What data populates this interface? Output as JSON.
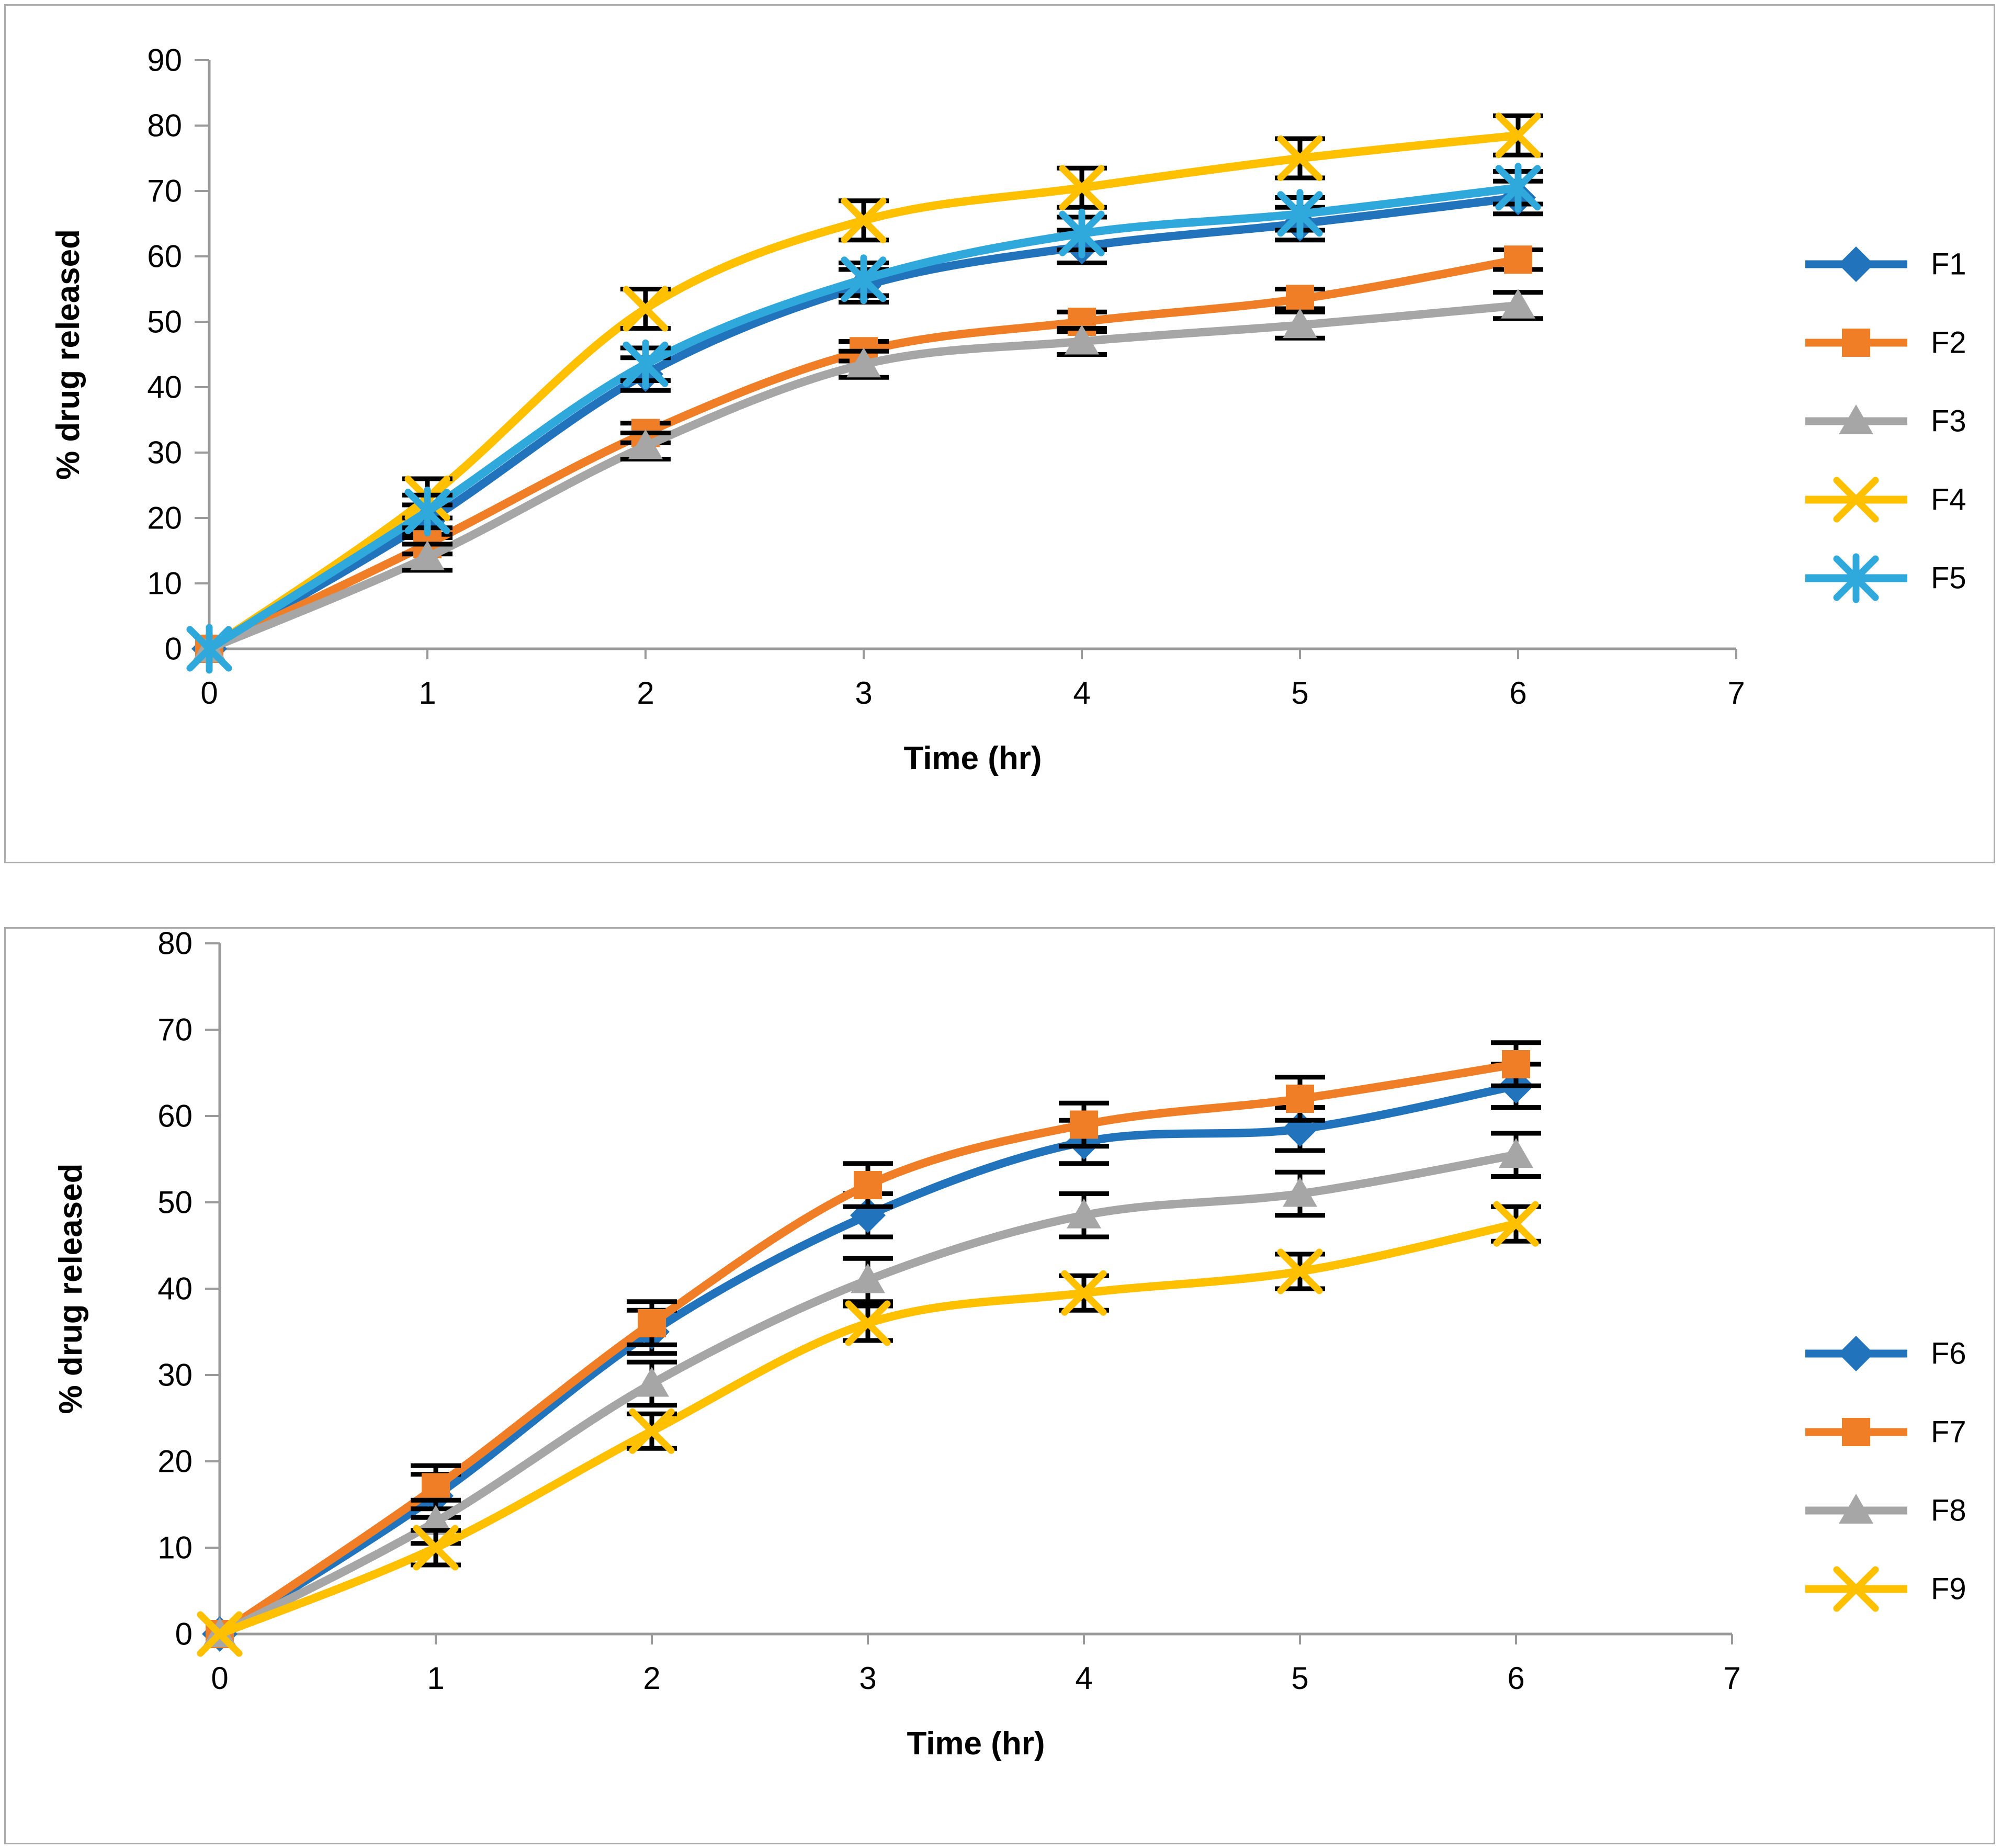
{
  "chart_data": [
    {
      "type": "line",
      "panel": "top",
      "title": "",
      "xlabel": "Time (hr)",
      "ylabel": "% drug released",
      "xlim": [
        0,
        7
      ],
      "ylim": [
        0,
        90
      ],
      "xticks": [
        0,
        1,
        2,
        3,
        4,
        5,
        6,
        7
      ],
      "yticks": [
        0,
        10,
        20,
        30,
        40,
        50,
        60,
        70,
        80,
        90
      ],
      "grid": false,
      "legend_position": "right",
      "x": [
        0,
        1,
        2,
        3,
        4,
        5,
        6
      ],
      "series": [
        {
          "name": "F1",
          "color": "#2173BC",
          "marker": "diamond",
          "error": 2.5,
          "values": [
            0,
            19.5,
            42,
            55.5,
            61.5,
            65,
            69
          ]
        },
        {
          "name": "F2",
          "color": "#F07E27",
          "marker": "square",
          "error": 1.5,
          "values": [
            0,
            16,
            33,
            45.5,
            50,
            53.5,
            59.5
          ]
        },
        {
          "name": "F3",
          "color": "#A6A6A6",
          "marker": "triangle",
          "error": 2.0,
          "values": [
            0,
            14,
            31,
            43.5,
            47,
            49.5,
            52.5
          ]
        },
        {
          "name": "F4",
          "color": "#FFC000",
          "marker": "x",
          "error": 3.0,
          "values": [
            0,
            23,
            52,
            65.5,
            70.5,
            75,
            78.5
          ]
        },
        {
          "name": "F5",
          "color": "#2FA8DC",
          "marker": "star",
          "error": 2.5,
          "values": [
            0,
            21,
            43.5,
            56.5,
            63.5,
            66.5,
            70.5
          ]
        }
      ]
    },
    {
      "type": "line",
      "panel": "bottom",
      "title": "",
      "xlabel": "Time (hr)",
      "ylabel": "% drug released",
      "xlim": [
        0,
        7
      ],
      "ylim": [
        0,
        80
      ],
      "xticks": [
        0,
        1,
        2,
        3,
        4,
        5,
        6,
        7
      ],
      "yticks": [
        0,
        10,
        20,
        30,
        40,
        50,
        60,
        70,
        80
      ],
      "grid": false,
      "legend_position": "right",
      "x": [
        0,
        1,
        2,
        3,
        4,
        5,
        6
      ],
      "series": [
        {
          "name": "F6",
          "color": "#2173BC",
          "marker": "diamond",
          "error": 2.5,
          "values": [
            0,
            16,
            35,
            48.5,
            57,
            58.5,
            63.5
          ]
        },
        {
          "name": "F7",
          "color": "#F07E27",
          "marker": "square",
          "error": 2.5,
          "values": [
            0,
            17,
            36,
            52,
            59,
            62,
            66
          ]
        },
        {
          "name": "F8",
          "color": "#A6A6A6",
          "marker": "triangle",
          "error": 2.5,
          "values": [
            0,
            13,
            29,
            41,
            48.5,
            51,
            55.5
          ]
        },
        {
          "name": "F9",
          "color": "#FFC000",
          "marker": "x",
          "error": 2.0,
          "values": [
            0,
            10,
            23.5,
            36,
            39.5,
            42,
            47.5
          ]
        }
      ]
    }
  ],
  "styles": {
    "error_bar_color": "#000000",
    "axis_color": "#9a9a9a",
    "text_color": "#000000",
    "panel_border_color": "#ababab",
    "background": "#ffffff"
  }
}
